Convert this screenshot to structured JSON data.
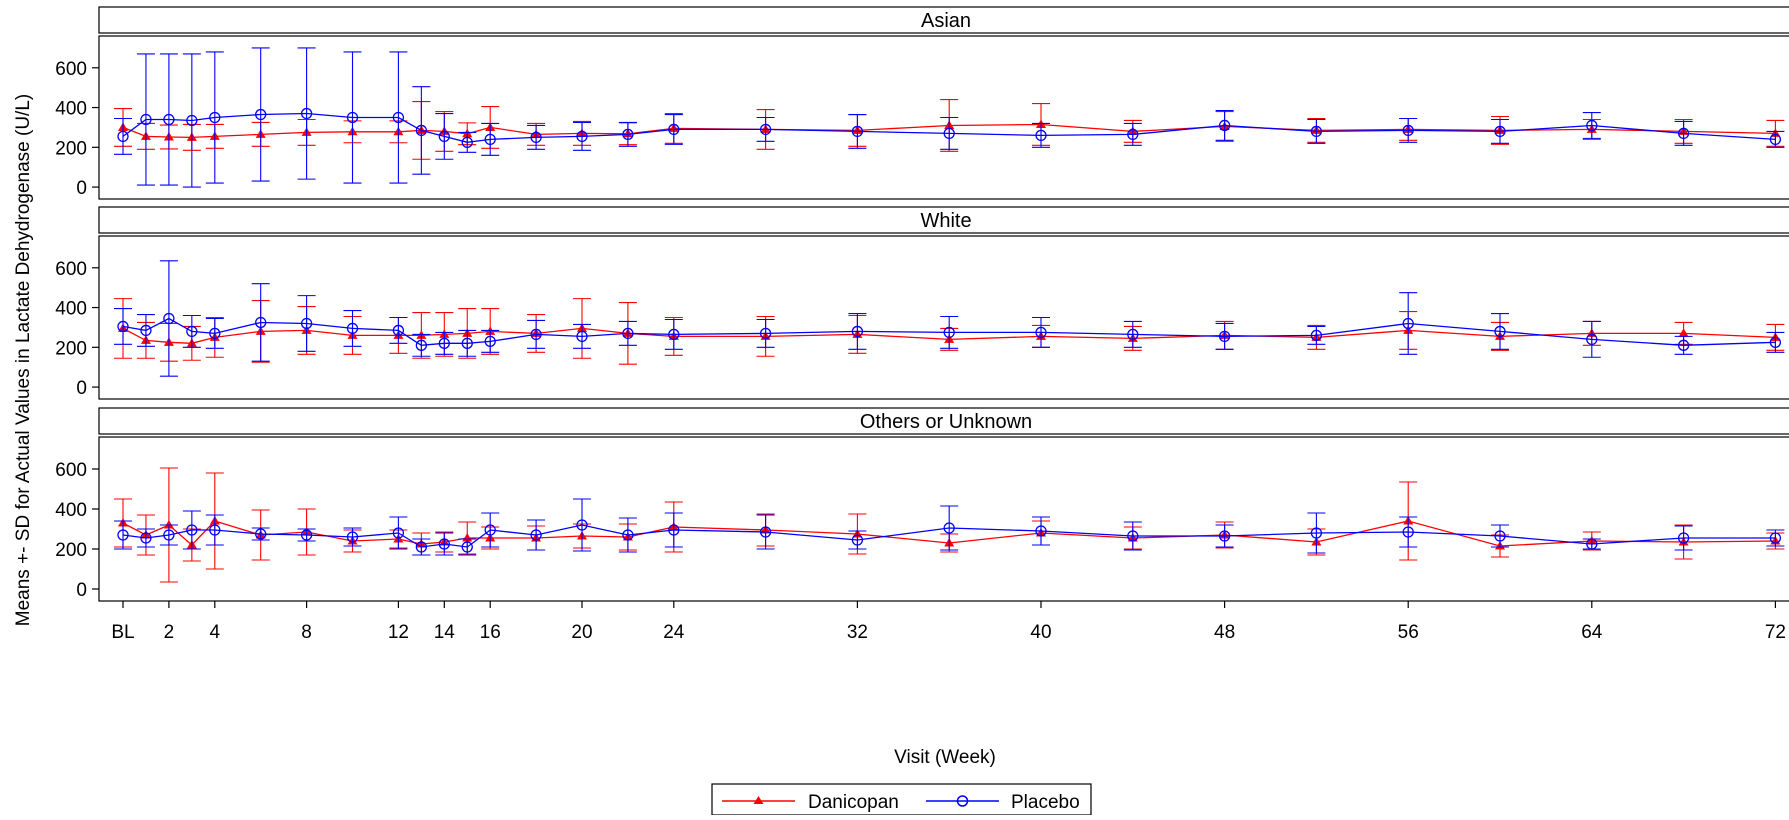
{
  "chart_data": {
    "type": "line",
    "ylabel": "Means +- SD for Actual Values in Lactate Dehydrogenase (U/L)",
    "xlabel": "Visit (Week)",
    "x_ticks": [
      "BL",
      "2",
      "4",
      "8",
      "12",
      "14",
      "16",
      "20",
      "24",
      "32",
      "40",
      "48",
      "56",
      "64",
      "72"
    ],
    "x_tick_weeks": [
      0,
      2,
      4,
      8,
      12,
      14,
      16,
      20,
      24,
      32,
      40,
      48,
      56,
      64,
      72
    ],
    "ylim": [
      -60,
      760
    ],
    "y_ticks": [
      0,
      200,
      400,
      600
    ],
    "legend": {
      "position": "bottom-center",
      "items": [
        {
          "name": "Danicopan",
          "color": "#ff0000",
          "marker": "filled-triangle"
        },
        {
          "name": "Placebo",
          "color": "#0000ff",
          "marker": "open-circle"
        }
      ]
    },
    "panels": [
      {
        "title": "Asian",
        "series": [
          {
            "name": "Danicopan",
            "weeks": [
              0,
              1,
              2,
              3,
              4,
              6,
              8,
              10,
              12,
              13,
              14,
              15,
              16,
              18,
              20,
              22,
              24,
              28,
              32,
              36,
              40,
              44,
              48,
              52,
              56,
              60,
              64,
              68,
              72
            ],
            "mean": [
              300,
              255,
              252,
              250,
              255,
              265,
              275,
              278,
              278,
              285,
              280,
              268,
              300,
              265,
              270,
              268,
              295,
              290,
              285,
              310,
              315,
              280,
              305,
              285,
              290,
              285,
              290,
              280,
              270
            ],
            "sd": [
              95,
              65,
              60,
              65,
              60,
              60,
              65,
              55,
              55,
              145,
              100,
              55,
              105,
              55,
              60,
              55,
              75,
              100,
              80,
              130,
              105,
              55,
              75,
              60,
              55,
              70,
              50,
              60,
              65
            ]
          },
          {
            "name": "Placebo",
            "weeks": [
              0,
              1,
              2,
              3,
              4,
              6,
              8,
              10,
              12,
              13,
              14,
              15,
              16,
              18,
              20,
              22,
              24,
              28,
              32,
              36,
              40,
              44,
              48,
              52,
              56,
              60,
              64,
              68,
              72
            ],
            "mean": [
              255,
              340,
              340,
              335,
              350,
              365,
              370,
              350,
              350,
              285,
              255,
              225,
              240,
              250,
              255,
              265,
              290,
              290,
              280,
              270,
              260,
              265,
              310,
              280,
              285,
              280,
              310,
              270,
              240
            ],
            "sd": [
              90,
              330,
              330,
              335,
              330,
              335,
              330,
              330,
              330,
              220,
              115,
              50,
              80,
              60,
              70,
              60,
              75,
              60,
              85,
              80,
              60,
              55,
              75,
              60,
              60,
              60,
              65,
              60,
              40
            ]
          }
        ]
      },
      {
        "title": "White",
        "series": [
          {
            "name": "Danicopan",
            "weeks": [
              0,
              1,
              2,
              3,
              4,
              6,
              8,
              10,
              12,
              13,
              14,
              15,
              16,
              18,
              20,
              22,
              24,
              28,
              32,
              36,
              40,
              44,
              48,
              52,
              56,
              60,
              64,
              68,
              72
            ],
            "mean": [
              295,
              235,
              225,
              220,
              250,
              280,
              285,
              260,
              260,
              260,
              265,
              270,
              280,
              270,
              295,
              270,
              255,
              255,
              265,
              240,
              255,
              245,
              260,
              250,
              285,
              255,
              270,
              270,
              250
            ],
            "sd": [
              150,
              90,
              95,
              85,
              100,
              155,
              120,
              95,
              90,
              115,
              110,
              125,
              115,
              95,
              150,
              155,
              95,
              100,
              95,
              55,
              55,
              60,
              70,
              60,
              95,
              70,
              60,
              55,
              65
            ]
          },
          {
            "name": "Placebo",
            "weeks": [
              0,
              1,
              2,
              3,
              4,
              6,
              8,
              10,
              12,
              13,
              14,
              15,
              16,
              18,
              20,
              22,
              24,
              28,
              32,
              36,
              40,
              44,
              48,
              52,
              56,
              60,
              64,
              68,
              72
            ],
            "mean": [
              305,
              285,
              345,
              280,
              270,
              325,
              320,
              295,
              285,
              210,
              220,
              220,
              230,
              265,
              255,
              270,
              265,
              270,
              280,
              275,
              275,
              265,
              255,
              260,
              320,
              280,
              240,
              210,
              225
            ],
            "sd": [
              90,
              80,
              290,
              80,
              75,
              195,
              140,
              90,
              65,
              55,
              55,
              65,
              55,
              70,
              60,
              60,
              75,
              70,
              90,
              80,
              75,
              65,
              65,
              45,
              155,
              90,
              90,
              45,
              50
            ]
          }
        ]
      },
      {
        "title": "Others or Unknown",
        "series": [
          {
            "name": "Danicopan",
            "weeks": [
              0,
              1,
              2,
              3,
              4,
              6,
              8,
              10,
              12,
              13,
              14,
              15,
              16,
              18,
              20,
              22,
              24,
              28,
              32,
              36,
              40,
              44,
              48,
              52,
              56,
              60,
              64,
              68,
              72
            ],
            "mean": [
              330,
              270,
              320,
              220,
              340,
              270,
              285,
              240,
              250,
              225,
              235,
              255,
              255,
              255,
              265,
              260,
              310,
              295,
              275,
              230,
              280,
              255,
              270,
              235,
              340,
              215,
              240,
              235,
              240
            ],
            "sd": [
              120,
              100,
              285,
              80,
              240,
              125,
              115,
              55,
              45,
              55,
              50,
              80,
              55,
              60,
              60,
              65,
              125,
              80,
              100,
              45,
              60,
              55,
              65,
              65,
              195,
              55,
              45,
              85,
              40
            ]
          },
          {
            "name": "Placebo",
            "weeks": [
              0,
              1,
              2,
              3,
              4,
              6,
              8,
              10,
              12,
              13,
              14,
              15,
              16,
              18,
              20,
              22,
              24,
              28,
              32,
              36,
              40,
              44,
              48,
              52,
              56,
              60,
              64,
              68,
              72
            ],
            "mean": [
              270,
              255,
              270,
              295,
              295,
              275,
              270,
              260,
              280,
              210,
              225,
              210,
              295,
              270,
              320,
              270,
              295,
              285,
              245,
              305,
              290,
              265,
              265,
              280,
              285,
              265,
              225,
              255,
              255
            ],
            "sd": [
              70,
              45,
              50,
              95,
              75,
              30,
              30,
              45,
              80,
              40,
              55,
              40,
              85,
              75,
              130,
              85,
              85,
              85,
              45,
              110,
              70,
              70,
              55,
              100,
              75,
              55,
              25,
              60,
              40
            ]
          }
        ]
      }
    ]
  }
}
